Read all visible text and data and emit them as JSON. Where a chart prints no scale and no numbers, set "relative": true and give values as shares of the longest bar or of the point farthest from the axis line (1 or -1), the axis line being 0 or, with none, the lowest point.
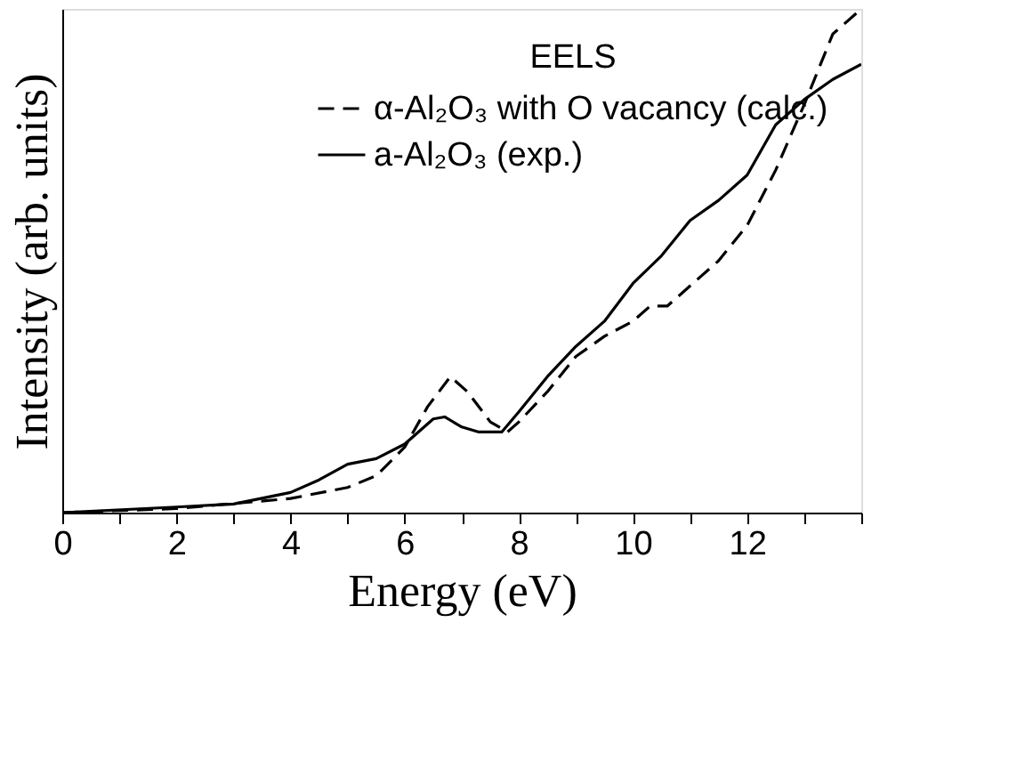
{
  "chart_data": {
    "type": "line",
    "relative": true,
    "xlabel": "Energy (eV)",
    "ylabel": "Intensity (arb. units)",
    "legend_title": "EELS",
    "xlim": [
      0,
      14
    ],
    "xticks": [
      0,
      {
        "value": 1,
        "label": null
      },
      2,
      {
        "value": 3,
        "label": null
      },
      4,
      {
        "value": 5,
        "label": null
      },
      6,
      {
        "value": 7,
        "label": null
      },
      8,
      {
        "value": 9,
        "label": null
      },
      10,
      {
        "value": 11,
        "label": null
      },
      12,
      {
        "value": 13,
        "label": null
      },
      {
        "value": 14,
        "label": null
      }
    ],
    "grid": false,
    "legend": "top right",
    "tick_labels": "x",
    "marker": "none",
    "series": [
      {
        "name": "α-Al₂O₃ with O vacancy (calc.)",
        "color": "#000000",
        "line_style": "dashed",
        "x": [
          0,
          2,
          4,
          5,
          5.5,
          6,
          6.4,
          6.8,
          7.1,
          7.5,
          7.8,
          8,
          8.5,
          9,
          9.5,
          10,
          10.3,
          10.6,
          11,
          11.5,
          12,
          12.5,
          13,
          13.5,
          14
        ],
        "values": [
          0,
          0.008,
          0.028,
          0.05,
          0.073,
          0.13,
          0.21,
          0.27,
          0.24,
          0.18,
          0.16,
          0.18,
          0.24,
          0.31,
          0.35,
          0.38,
          0.41,
          0.41,
          0.45,
          0.5,
          0.57,
          0.68,
          0.81,
          0.95,
          1
        ]
      },
      {
        "name": "a-Al₂O₃ (exp.)",
        "color": "#000000",
        "line_style": "solid",
        "x": [
          0,
          2,
          3,
          4,
          4.5,
          5,
          5.5,
          6,
          6.5,
          6.7,
          7,
          7.3,
          7.7,
          8,
          8.5,
          9,
          9.5,
          10,
          10.5,
          11,
          11.5,
          12,
          12.5,
          13,
          13.5,
          14
        ],
        "values": [
          0,
          0.011,
          0.017,
          0.04,
          0.065,
          0.096,
          0.107,
          0.136,
          0.186,
          0.19,
          0.17,
          0.16,
          0.16,
          0.2,
          0.27,
          0.33,
          0.38,
          0.455,
          0.51,
          0.58,
          0.62,
          0.67,
          0.77,
          0.82,
          0.86,
          0.89
        ]
      }
    ]
  }
}
